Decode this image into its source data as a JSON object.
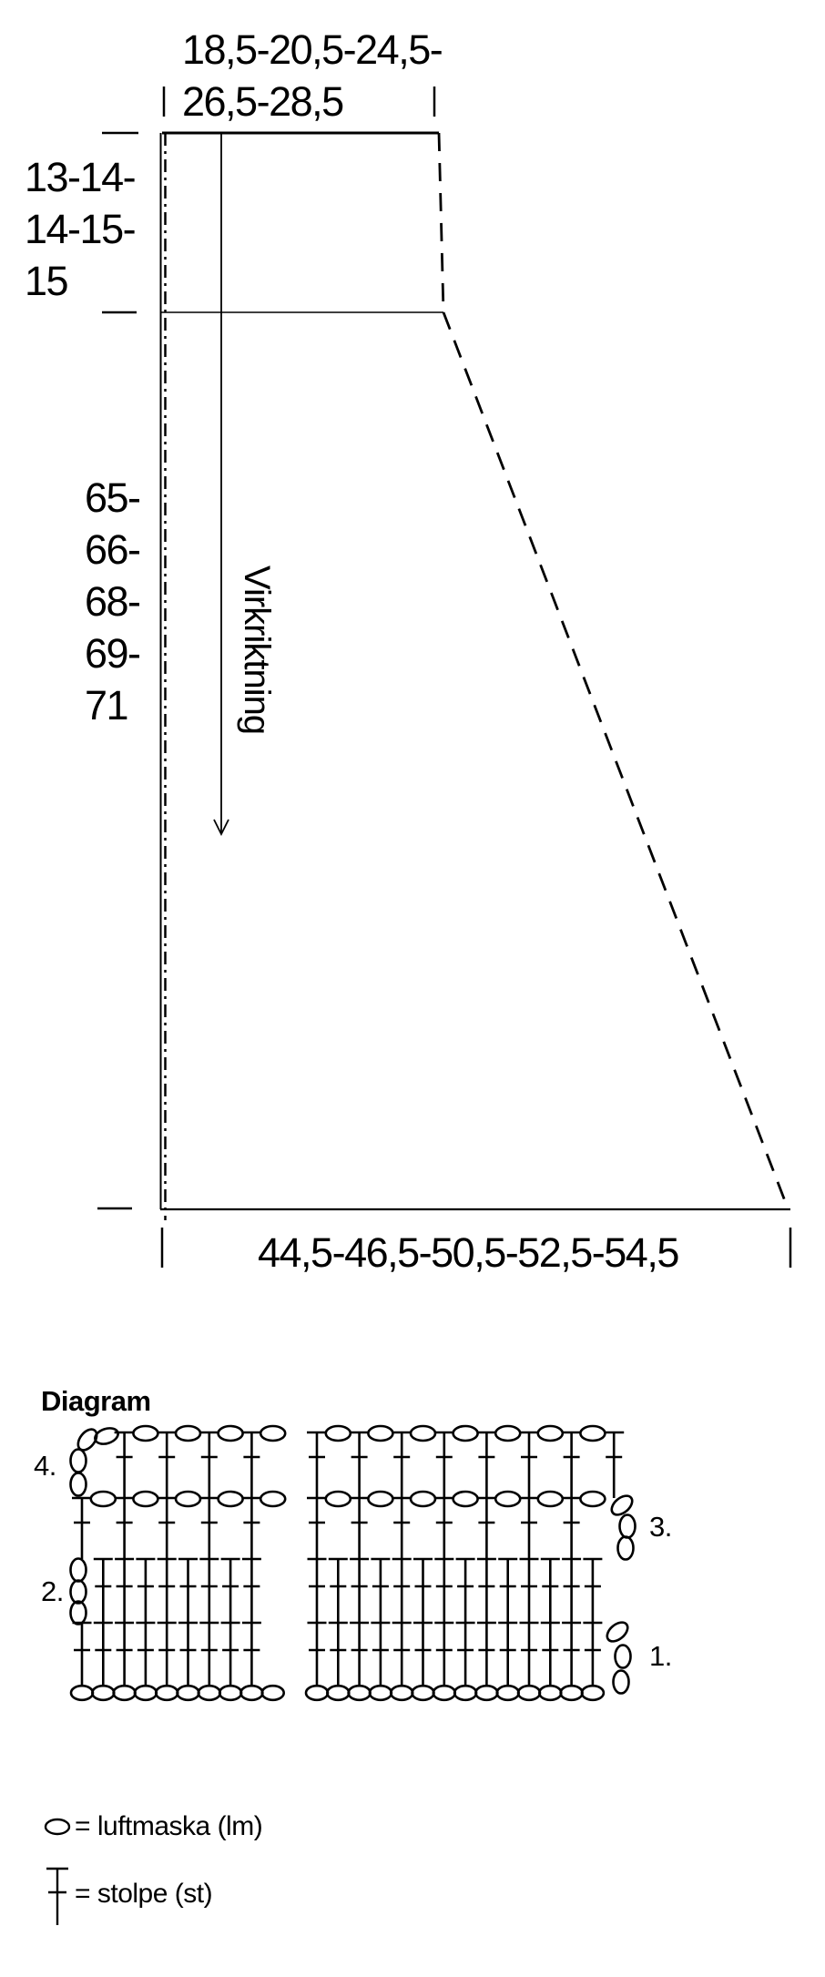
{
  "colors": {
    "ink": "#000000",
    "background": "#ffffff"
  },
  "schematic": {
    "top_width_lines": [
      "18,5-20,5-24,5-",
      "26,5-28,5"
    ],
    "left_top_measure_lines": [
      "13-14-",
      "14-15-",
      "15"
    ],
    "left_length_measure_lines": [
      "65-",
      "66-",
      "68-",
      "69-",
      "71"
    ],
    "bottom_width": "44,5-46,5-50,5-52,5-54,5",
    "direction_label": "Virkriktning"
  },
  "diagram": {
    "title": "Diagram",
    "row_labels": [
      {
        "label": "4.",
        "side": "left",
        "row": 4
      },
      {
        "label": "3.",
        "side": "right",
        "row": 3
      },
      {
        "label": "2.",
        "side": "left",
        "row": 2
      },
      {
        "label": "1.",
        "side": "right",
        "row": 1
      }
    ],
    "groups": [
      {
        "name": "left",
        "foundation_chains": 10,
        "rows": [
          {
            "num": 1,
            "type": "solid",
            "posts": 9,
            "post_start": 0,
            "turn": null
          },
          {
            "num": 2,
            "type": "solid",
            "posts": 8,
            "post_start": 1,
            "turn": {
              "side": "left",
              "chains": 3
            }
          },
          {
            "num": 3,
            "type": "mesh",
            "posts": 5,
            "post_start": 0,
            "ovals": 5,
            "oval_start": 0,
            "turn": null
          },
          {
            "num": 4,
            "type": "mesh",
            "posts": 4,
            "post_start": 1,
            "ovals": 4,
            "oval_start": 1,
            "turn": {
              "side": "left",
              "chains": 4
            }
          }
        ]
      },
      {
        "name": "right",
        "foundation_chains": 14,
        "rows": [
          {
            "num": 1,
            "type": "solid",
            "posts": 14,
            "post_start": 0,
            "turn": {
              "side": "right",
              "chains": 3
            }
          },
          {
            "num": 2,
            "type": "solid",
            "posts": 14,
            "post_start": 0,
            "turn": null
          },
          {
            "num": 3,
            "type": "mesh",
            "posts": 7,
            "post_start": 0,
            "ovals": 7,
            "oval_start": 0,
            "turn": {
              "side": "right",
              "chains": 3
            }
          },
          {
            "num": 4,
            "type": "mesh",
            "posts": 8,
            "post_start": 0,
            "ovals": 7,
            "oval_start": 0,
            "turn": null
          }
        ]
      }
    ]
  },
  "legend": {
    "items": [
      {
        "symbol": "chain-stitch-icon",
        "text": "= luftmaska (lm)"
      },
      {
        "symbol": "double-crochet-icon",
        "text": "= stolpe (st)"
      }
    ]
  }
}
